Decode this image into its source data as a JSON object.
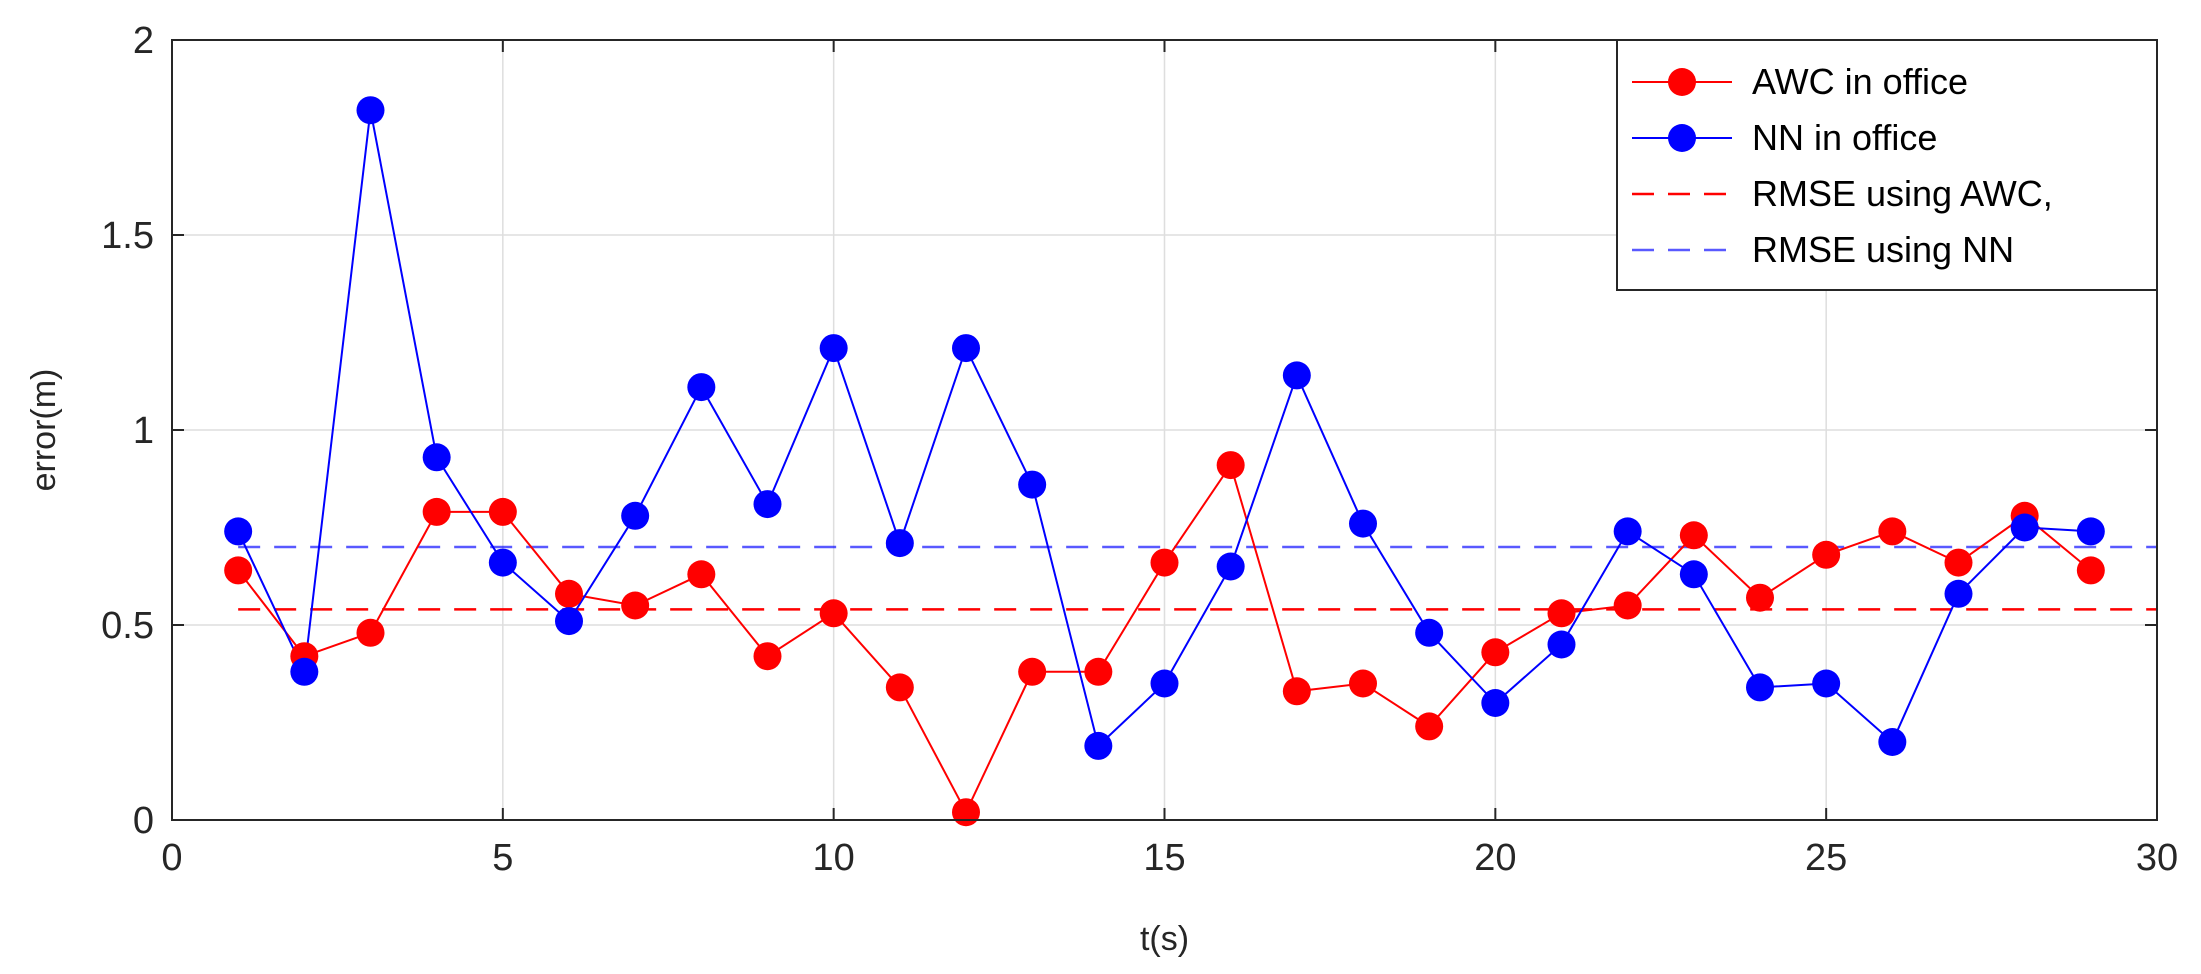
{
  "chart_data": {
    "type": "line",
    "title": "",
    "xlabel": "t(s)",
    "ylabel": "error(m)",
    "xlim": [
      0,
      30
    ],
    "ylim": [
      0,
      2
    ],
    "xticks": [
      "0",
      "5",
      "10",
      "15",
      "20",
      "25",
      "30"
    ],
    "yticks": [
      "0",
      "0.5",
      "1",
      "1.5",
      "2"
    ],
    "grid": true,
    "legend_position": "top-right",
    "x": [
      1,
      2,
      3,
      4,
      5,
      6,
      7,
      8,
      9,
      10,
      11,
      12,
      13,
      14,
      15,
      16,
      17,
      18,
      19,
      20,
      21,
      22,
      23,
      24,
      25,
      26,
      27,
      28,
      29
    ],
    "series": [
      {
        "name": "AWC in office",
        "color": "#ff0000",
        "style": "solid-marker",
        "values": [
          0.64,
          0.42,
          0.48,
          0.79,
          0.79,
          0.58,
          0.55,
          0.63,
          0.42,
          0.53,
          0.34,
          0.02,
          0.38,
          0.38,
          0.66,
          0.91,
          0.33,
          0.35,
          0.24,
          0.43,
          0.53,
          0.55,
          0.73,
          0.57,
          0.68,
          0.74,
          0.66,
          0.78,
          0.64
        ]
      },
      {
        "name": "NN in office",
        "color": "#0000ff",
        "style": "solid-marker",
        "values": [
          0.74,
          0.38,
          1.82,
          0.93,
          0.66,
          0.51,
          0.78,
          1.11,
          0.81,
          1.21,
          0.71,
          1.21,
          0.86,
          0.19,
          0.35,
          0.65,
          1.14,
          0.76,
          0.48,
          0.3,
          0.45,
          0.74,
          0.63,
          0.34,
          0.35,
          0.2,
          0.58,
          0.75,
          0.74
        ]
      },
      {
        "name": "RMSE using AWC,",
        "color": "#ff0000",
        "style": "dashed",
        "x_range": [
          1,
          30
        ],
        "value": 0.54
      },
      {
        "name": "RMSE using NN",
        "color": "#0000ff",
        "style": "dashed",
        "x_range": [
          1,
          30
        ],
        "value": 0.7
      }
    ]
  }
}
